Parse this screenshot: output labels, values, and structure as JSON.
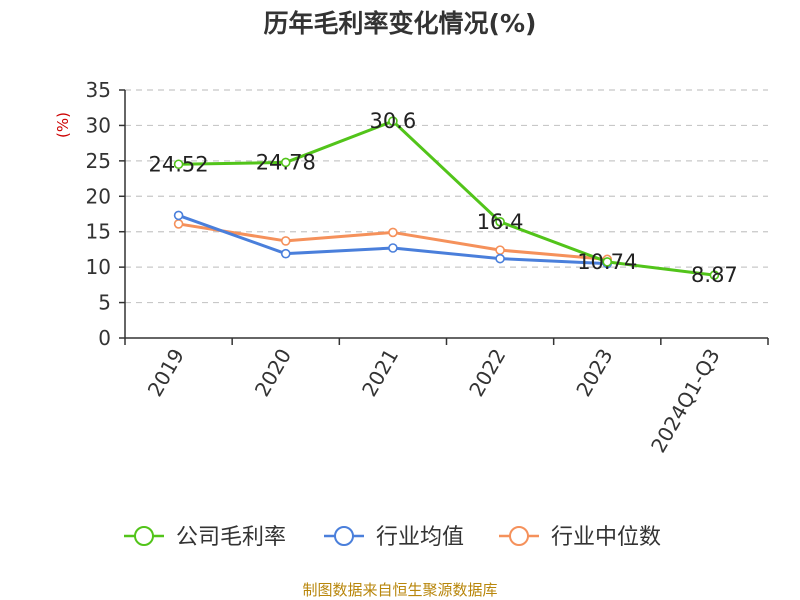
{
  "chart_data": {
    "type": "line",
    "title": "历年毛利率变化情况(%)",
    "ylabel": "(%)",
    "categories": [
      "2019",
      "2020",
      "2021",
      "2022",
      "2023",
      "2024Q1-Q3"
    ],
    "ylim": [
      0,
      35
    ],
    "yticks": [
      0,
      5,
      10,
      15,
      20,
      25,
      30,
      35
    ],
    "grid": true,
    "legend_position": "bottom",
    "series": [
      {
        "name": "公司毛利率",
        "color": "#52c41a",
        "values": [
          24.52,
          24.78,
          30.6,
          16.4,
          10.74,
          8.87
        ],
        "show_labels": true
      },
      {
        "name": "行业均值",
        "color": "#4a7fdb",
        "values": [
          17.3,
          11.9,
          12.7,
          11.2,
          10.5,
          null
        ],
        "show_labels": false
      },
      {
        "name": "行业中位数",
        "color": "#f5915b",
        "values": [
          16.1,
          13.7,
          14.9,
          12.4,
          11.1,
          null
        ],
        "show_labels": false
      }
    ],
    "labels": [
      "24.52",
      "24.78",
      "30.6",
      "16.4",
      "10.74",
      "8.87"
    ]
  },
  "source": "制图数据来自恒生聚源数据库"
}
